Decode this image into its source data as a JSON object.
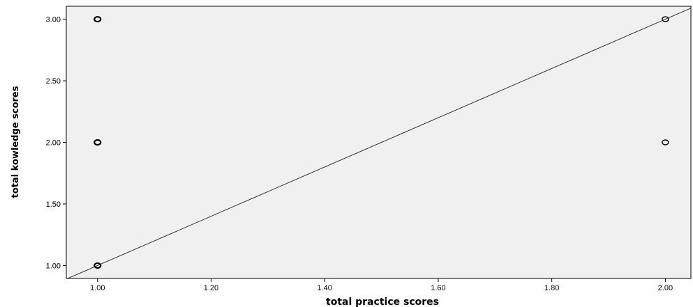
{
  "chart_data": {
    "type": "scatter",
    "title": "",
    "xlabel": "total practice scores",
    "ylabel": "total kowledge scores",
    "xlim": [
      0.945,
      2.045
    ],
    "ylim": [
      0.895,
      3.105
    ],
    "x_ticks": [
      1.0,
      1.2,
      1.4,
      1.6,
      1.8,
      2.0
    ],
    "x_tick_labels": [
      "1.00",
      "1.20",
      "1.40",
      "1.60",
      "1.80",
      "2.00"
    ],
    "y_ticks": [
      1.0,
      1.5,
      2.0,
      2.5,
      3.0
    ],
    "y_tick_labels": [
      "1.00",
      "1.50",
      "2.00",
      "2.50",
      "3.00"
    ],
    "grid": false,
    "plot_background": "#f0f0f0",
    "marker": "hollow circle",
    "series": [
      {
        "points": [
          {
            "x": 1.0,
            "y": 3.0
          },
          {
            "x": 1.0,
            "y": 2.0
          },
          {
            "x": 1.0,
            "y": 1.0
          },
          {
            "x": 2.0,
            "y": 3.0
          },
          {
            "x": 2.0,
            "y": 2.0
          }
        ]
      }
    ],
    "fit_line": {
      "type": "linear",
      "intercept": -1.0,
      "slope": 2.0
    }
  }
}
